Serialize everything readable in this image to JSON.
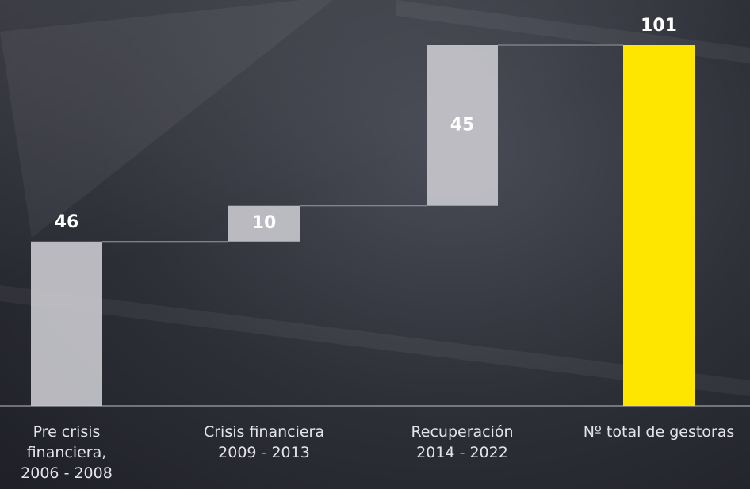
{
  "chart_data": {
    "type": "waterfall",
    "categories": [
      "Pre crisis\nfinanciera,\n2006 - 2008",
      "Crisis financiera\n2009 - 2013",
      "Recuperación\n2014 - 2022",
      "Nº total de gestoras"
    ],
    "values": [
      46,
      10,
      45,
      101
    ],
    "total": [
      false,
      false,
      false,
      true
    ],
    "color": "#c9c9ce",
    "total_color": "#ffe600"
  }
}
